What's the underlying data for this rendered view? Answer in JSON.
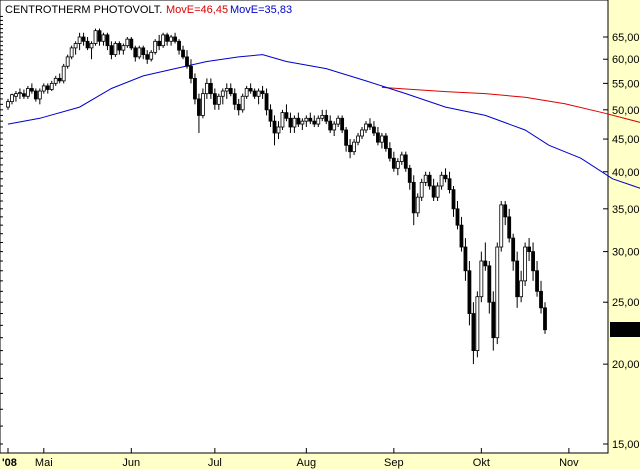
{
  "chart_data": {
    "type": "candlestick",
    "title": "CENTROTHERM PHOTOVOLT.",
    "indicators": [
      {
        "label": "MovE=46,45",
        "color": "#dd0000",
        "values": [
          [
            94,
            54.2
          ],
          [
            100,
            53.9
          ],
          [
            110,
            53.4
          ],
          [
            120,
            53.0
          ],
          [
            130,
            52.3
          ],
          [
            140,
            51.1
          ],
          [
            150,
            49.4
          ],
          [
            160,
            47.6
          ],
          [
            166,
            46.45
          ]
        ]
      },
      {
        "label": "MovE=35,83",
        "color": "#0000cc",
        "values": [
          [
            0,
            47.5
          ],
          [
            8,
            48.5
          ],
          [
            18,
            50.5
          ],
          [
            26,
            54.0
          ],
          [
            34,
            56.5
          ],
          [
            42,
            58.0
          ],
          [
            50,
            59.5
          ],
          [
            58,
            60.5
          ],
          [
            64,
            61.0
          ],
          [
            70,
            59.5
          ],
          [
            80,
            58.0
          ],
          [
            90,
            55.5
          ],
          [
            100,
            53.0
          ],
          [
            110,
            50.5
          ],
          [
            120,
            49.0
          ],
          [
            130,
            46.5
          ],
          [
            136,
            44.0
          ],
          [
            144,
            42.0
          ],
          [
            152,
            39.0
          ],
          [
            160,
            37.5
          ],
          [
            166,
            35.83
          ]
        ]
      }
    ],
    "y_axis": {
      "scale": "log",
      "range": [
        15,
        70
      ],
      "tick_values": [
        15,
        20,
        25,
        30,
        35,
        40,
        45,
        50,
        55,
        60,
        65
      ],
      "tick_labels": [
        "15,00",
        "20,00",
        "25,00",
        "30,00",
        "35,00",
        "40,00",
        "45,00",
        "50,00",
        "55,00",
        "60,00",
        "65,00"
      ],
      "position": "right"
    },
    "x_axis": {
      "labels": [
        "'08",
        "Mai",
        "Jun",
        "Jul",
        "Aug",
        "Sep",
        "Okt",
        "Nov"
      ],
      "label_days": [
        0,
        9,
        31,
        52,
        75,
        97,
        119,
        141
      ],
      "range": [
        0,
        171
      ]
    },
    "last_price": {
      "value": 22.64,
      "label": "22,64"
    },
    "grid": false,
    "candles": [
      [
        0,
        50.5,
        52,
        50,
        51.5
      ],
      [
        1,
        51.5,
        53,
        51,
        52.8
      ],
      [
        2,
        52.5,
        53.5,
        51.5,
        53
      ],
      [
        3,
        53,
        54,
        52,
        53.2
      ],
      [
        4,
        53,
        53.8,
        52,
        52.5
      ],
      [
        5,
        52.5,
        54.5,
        52,
        54
      ],
      [
        6,
        54,
        55,
        53,
        53.5
      ],
      [
        7,
        53.5,
        54,
        51.5,
        52
      ],
      [
        8,
        52,
        54,
        51,
        53.5
      ],
      [
        9,
        53.5,
        55,
        53,
        54.5
      ],
      [
        10,
        54.5,
        55,
        53,
        53.8
      ],
      [
        11,
        53.8,
        55.5,
        53.5,
        55
      ],
      [
        12,
        55,
        56.5,
        54.5,
        56
      ],
      [
        13,
        56,
        57,
        55,
        55.5
      ],
      [
        14,
        55.5,
        59,
        55,
        58.5
      ],
      [
        15,
        58.5,
        61,
        58,
        60.5
      ],
      [
        16,
        60.5,
        63,
        60,
        62.5
      ],
      [
        17,
        62.5,
        64,
        61,
        63.5
      ],
      [
        18,
        63.5,
        66,
        62,
        65
      ],
      [
        19,
        65,
        66,
        63,
        64
      ],
      [
        20,
        64,
        65,
        62,
        62.5
      ],
      [
        21,
        62.5,
        64,
        60,
        63.5
      ],
      [
        22,
        63.5,
        67,
        63,
        66.5
      ],
      [
        23,
        66.5,
        67,
        63,
        64
      ],
      [
        24,
        64,
        66,
        63,
        65.5
      ],
      [
        25,
        65.5,
        66,
        62,
        63
      ],
      [
        26,
        63,
        64,
        60,
        61
      ],
      [
        27,
        61,
        64,
        60.5,
        63.5
      ],
      [
        28,
        63.5,
        64,
        61,
        62
      ],
      [
        29,
        62,
        63.5,
        61,
        63
      ],
      [
        30,
        63,
        65,
        62.5,
        64.5
      ],
      [
        31,
        64.5,
        65,
        62,
        62.5
      ],
      [
        32,
        62.5,
        63,
        59.5,
        60.5
      ],
      [
        33,
        60.5,
        63,
        60,
        62.5
      ],
      [
        34,
        62.5,
        63,
        60,
        61
      ],
      [
        35,
        61,
        62,
        59,
        60
      ],
      [
        36,
        60,
        62,
        59.5,
        61.5
      ],
      [
        37,
        61.5,
        64.5,
        61,
        64
      ],
      [
        38,
        64,
        65.5,
        62,
        63
      ],
      [
        39,
        63,
        66,
        62.5,
        65.5
      ],
      [
        40,
        65.5,
        66,
        63,
        64
      ],
      [
        41,
        64,
        65.5,
        63,
        65
      ],
      [
        42,
        65,
        66,
        63.5,
        64
      ],
      [
        43,
        64,
        64.5,
        61,
        62
      ],
      [
        44,
        62,
        63,
        60,
        60.5
      ],
      [
        45,
        60.5,
        62,
        58,
        58.5
      ],
      [
        46,
        58.5,
        60,
        55,
        56
      ],
      [
        47,
        56,
        57,
        51,
        52
      ],
      [
        48,
        52,
        53,
        46,
        49
      ],
      [
        49,
        49,
        54,
        48.5,
        53
      ],
      [
        50,
        53,
        56,
        52,
        55
      ],
      [
        51,
        55,
        56,
        52,
        53
      ],
      [
        52,
        53,
        54,
        50,
        51
      ],
      [
        53,
        51,
        53,
        50,
        52.5
      ],
      [
        54,
        52.5,
        54,
        51,
        53.5
      ],
      [
        55,
        53.5,
        55,
        52,
        54
      ],
      [
        56,
        54,
        55,
        52.5,
        53
      ],
      [
        57,
        53,
        54,
        50,
        51
      ],
      [
        58,
        51,
        52,
        49,
        50
      ],
      [
        59,
        50,
        53,
        49.5,
        52.5
      ],
      [
        60,
        52.5,
        54.5,
        52,
        54
      ],
      [
        61,
        54,
        55,
        53,
        53.5
      ],
      [
        62,
        53.5,
        54,
        52,
        52.5
      ],
      [
        63,
        52.5,
        54,
        51,
        53.5
      ],
      [
        64,
        53.5,
        54.5,
        52,
        53
      ],
      [
        65,
        53,
        54,
        49,
        50
      ],
      [
        66,
        50,
        51,
        47,
        48
      ],
      [
        67,
        48,
        49,
        44,
        46
      ],
      [
        68,
        46,
        48,
        45,
        47
      ],
      [
        69,
        47,
        50,
        46.5,
        49.5
      ],
      [
        70,
        49.5,
        51,
        48,
        48.5
      ],
      [
        71,
        48.5,
        49.5,
        46,
        47
      ],
      [
        72,
        47,
        49,
        46,
        48.5
      ],
      [
        73,
        48.5,
        49.5,
        47,
        47.5
      ],
      [
        74,
        47.5,
        48.5,
        46.5,
        48
      ],
      [
        75,
        48,
        49,
        47,
        48.5
      ],
      [
        76,
        48.5,
        49.5,
        47.5,
        48
      ],
      [
        77,
        48,
        49,
        47,
        47.5
      ],
      [
        78,
        47.5,
        49,
        47,
        48.5
      ],
      [
        79,
        48.5,
        50,
        48,
        49
      ],
      [
        80,
        49,
        50,
        47.5,
        48
      ],
      [
        81,
        48,
        49,
        46,
        46.5
      ],
      [
        82,
        46.5,
        48,
        45.5,
        47.5
      ],
      [
        83,
        47.5,
        49,
        47,
        48.5
      ],
      [
        84,
        48.5,
        49,
        46,
        46.5
      ],
      [
        85,
        46.5,
        47,
        43,
        44
      ],
      [
        86,
        44,
        45,
        42,
        43
      ],
      [
        87,
        43,
        45,
        42.5,
        44.5
      ],
      [
        88,
        44.5,
        46,
        44,
        45.5
      ],
      [
        89,
        45.5,
        47,
        45,
        46.5
      ],
      [
        90,
        46.5,
        48,
        46,
        47.5
      ],
      [
        91,
        47.5,
        48.5,
        46.5,
        47
      ],
      [
        92,
        47,
        48,
        45.5,
        46
      ],
      [
        93,
        46,
        47,
        44,
        44.5
      ],
      [
        94,
        44.5,
        46,
        43.5,
        45.5
      ],
      [
        95,
        45.5,
        46,
        43,
        43.5
      ],
      [
        96,
        43.5,
        44.5,
        41.5,
        42
      ],
      [
        97,
        42,
        43,
        40,
        40.5
      ],
      [
        98,
        40.5,
        42,
        39.5,
        41.5
      ],
      [
        99,
        41.5,
        43,
        41,
        42.5
      ],
      [
        100,
        42.5,
        43,
        40,
        40.5
      ],
      [
        101,
        40.5,
        41,
        37.5,
        38.5
      ],
      [
        102,
        38.5,
        39.5,
        33,
        34.5
      ],
      [
        103,
        34.5,
        37,
        34,
        36.5
      ],
      [
        104,
        36.5,
        39,
        36,
        38.5
      ],
      [
        105,
        38.5,
        40,
        38,
        39.5
      ],
      [
        106,
        39.5,
        40,
        37.5,
        38
      ],
      [
        107,
        38,
        39,
        36,
        36.5
      ],
      [
        108,
        36.5,
        38.5,
        36,
        38
      ],
      [
        109,
        38,
        40,
        37.5,
        39.5
      ],
      [
        110,
        39.5,
        40.5,
        38.5,
        39
      ],
      [
        111,
        39,
        40,
        37,
        37.5
      ],
      [
        112,
        37.5,
        38,
        34,
        35
      ],
      [
        113,
        35,
        36,
        32.5,
        33
      ],
      [
        114,
        33,
        34,
        30,
        30.5
      ],
      [
        115,
        30.5,
        31.5,
        27,
        28
      ],
      [
        116,
        28,
        29,
        23,
        24
      ],
      [
        117,
        24,
        25,
        20,
        21
      ],
      [
        118,
        21,
        26,
        20.5,
        25.5
      ],
      [
        119,
        25.5,
        30,
        25,
        29
      ],
      [
        120,
        29,
        31,
        28,
        28.5
      ],
      [
        121,
        28.5,
        29,
        24,
        25
      ],
      [
        122,
        25,
        26,
        21,
        22
      ],
      [
        123,
        22,
        31,
        21.5,
        30.5
      ],
      [
        124,
        30.5,
        36,
        30,
        35.5
      ],
      [
        125,
        35.5,
        36,
        33,
        34
      ],
      [
        126,
        34,
        35,
        31,
        31.5
      ],
      [
        127,
        31.5,
        32,
        28,
        29
      ],
      [
        128,
        29,
        30,
        24.5,
        25.5
      ],
      [
        129,
        25.5,
        28,
        25,
        27
      ],
      [
        130,
        27,
        31,
        26.5,
        30.5
      ],
      [
        131,
        30.5,
        31.5,
        29,
        30
      ],
      [
        132,
        30,
        31,
        27,
        28
      ],
      [
        133,
        28,
        29,
        25.5,
        26
      ],
      [
        134,
        26,
        27,
        24,
        24.5
      ],
      [
        135,
        24.5,
        25,
        22.3,
        22.64
      ]
    ]
  }
}
